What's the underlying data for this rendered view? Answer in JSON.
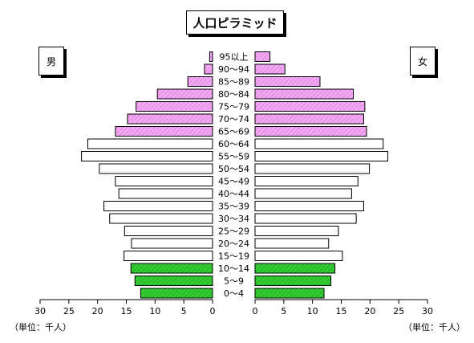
{
  "title": "人口ピラミッド",
  "male_label": "男",
  "female_label": "女",
  "unit_left": "（単位：千人）",
  "unit_right": "（単位：千人）",
  "colors": {
    "young": "#33cc33",
    "old": "#ee99ee",
    "middle": "#ffffff",
    "stroke": "#000000"
  },
  "chart_data": {
    "type": "bar",
    "orientation": "horizontal",
    "categories": [
      "0～4",
      "5～9",
      "10～14",
      "15～19",
      "20～24",
      "25～29",
      "30～34",
      "35～39",
      "40～44",
      "45～49",
      "50～54",
      "55～59",
      "60～64",
      "65～69",
      "70～74",
      "75～79",
      "80～84",
      "85～89",
      "90～94",
      "95以上"
    ],
    "series": [
      {
        "name": "男",
        "values": [
          12.5,
          13.5,
          14.2,
          15.4,
          14.1,
          15.3,
          17.9,
          18.9,
          16.3,
          16.9,
          19.7,
          22.8,
          21.7,
          16.9,
          14.8,
          13.3,
          9.6,
          4.3,
          1.4,
          0.5
        ]
      },
      {
        "name": "女",
        "values": [
          12.0,
          13.2,
          13.9,
          15.2,
          12.8,
          14.5,
          17.6,
          18.9,
          16.8,
          17.9,
          19.9,
          23.1,
          22.3,
          19.4,
          18.9,
          19.1,
          17.1,
          11.3,
          5.2,
          2.6
        ]
      }
    ],
    "xticks": [
      30,
      25,
      20,
      15,
      10,
      5,
      0
    ],
    "xlim": [
      0,
      30
    ],
    "grid": false
  }
}
